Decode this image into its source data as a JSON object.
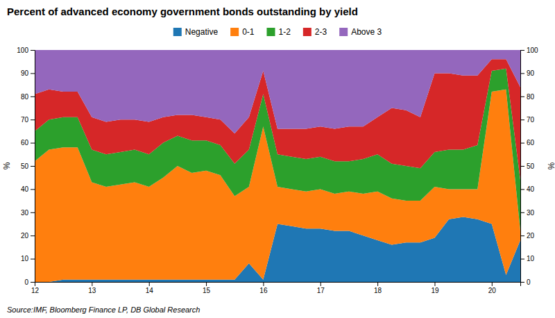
{
  "chart_data": {
    "type": "area",
    "stacked": true,
    "title": "Percent of advanced economy government bonds outstanding by yield",
    "ylabel": "%",
    "y2label": "%",
    "source": "Source:IMF, Bloomberg Finance LP, DB Global Research",
    "legend": "top",
    "grid": false,
    "xlim": [
      12,
      20.5
    ],
    "xticks": [
      12,
      13,
      14,
      15,
      16,
      17,
      18,
      19,
      20
    ],
    "ylim": [
      0,
      100
    ],
    "yticks": [
      0,
      10,
      20,
      30,
      40,
      50,
      60,
      70,
      80,
      90,
      100
    ],
    "y2lim": [
      0,
      100
    ],
    "y2ticks": [
      0,
      10,
      20,
      30,
      40,
      50,
      60,
      70,
      80,
      90,
      100
    ],
    "x": [
      12.0,
      12.25,
      12.5,
      12.75,
      13.0,
      13.25,
      13.5,
      13.75,
      14.0,
      14.25,
      14.5,
      14.75,
      15.0,
      15.25,
      15.5,
      15.75,
      16.0,
      16.25,
      16.5,
      16.75,
      17.0,
      17.25,
      17.5,
      17.75,
      18.0,
      18.25,
      18.5,
      18.75,
      19.0,
      19.25,
      19.5,
      19.75,
      20.0,
      20.25,
      20.5
    ],
    "series": [
      {
        "name": "Negative",
        "values": [
          0,
          0,
          1,
          1,
          1,
          1,
          1,
          1,
          1,
          1,
          1,
          1,
          1,
          1,
          1,
          8,
          1,
          25,
          24,
          23,
          23,
          22,
          22,
          20,
          18,
          16,
          17,
          17,
          19,
          27,
          28,
          27,
          25,
          3,
          18
        ]
      },
      {
        "name": "0-1",
        "values": [
          52,
          57,
          57,
          57,
          42,
          40,
          41,
          42,
          40,
          44,
          49,
          46,
          47,
          45,
          36,
          33,
          66,
          16,
          16,
          16,
          17,
          16,
          17,
          18,
          21,
          20,
          18,
          18,
          22,
          13,
          12,
          13,
          57,
          80,
          4
        ]
      },
      {
        "name": "1-2",
        "values": [
          13,
          13,
          13,
          13,
          14,
          14,
          14,
          14,
          14,
          15,
          13,
          14,
          13,
          13,
          14,
          16,
          14,
          14,
          14,
          14,
          14,
          14,
          13,
          15,
          16,
          15,
          15,
          14,
          15,
          17,
          17,
          19,
          9,
          9,
          22
        ]
      },
      {
        "name": "2-3",
        "values": [
          16,
          13,
          11,
          11,
          14,
          14,
          14,
          13,
          14,
          11,
          9,
          11,
          10,
          11,
          13,
          14,
          10,
          11,
          12,
          13,
          13,
          14,
          15,
          14,
          16,
          24,
          24,
          22,
          34,
          33,
          32,
          30,
          5,
          4,
          40
        ]
      },
      {
        "name": "Above 3",
        "values": [
          19,
          17,
          18,
          18,
          29,
          31,
          30,
          30,
          31,
          29,
          28,
          28,
          29,
          30,
          36,
          29,
          9,
          34,
          34,
          34,
          33,
          34,
          33,
          33,
          29,
          25,
          26,
          29,
          10,
          10,
          11,
          11,
          4,
          4,
          16
        ]
      }
    ]
  }
}
